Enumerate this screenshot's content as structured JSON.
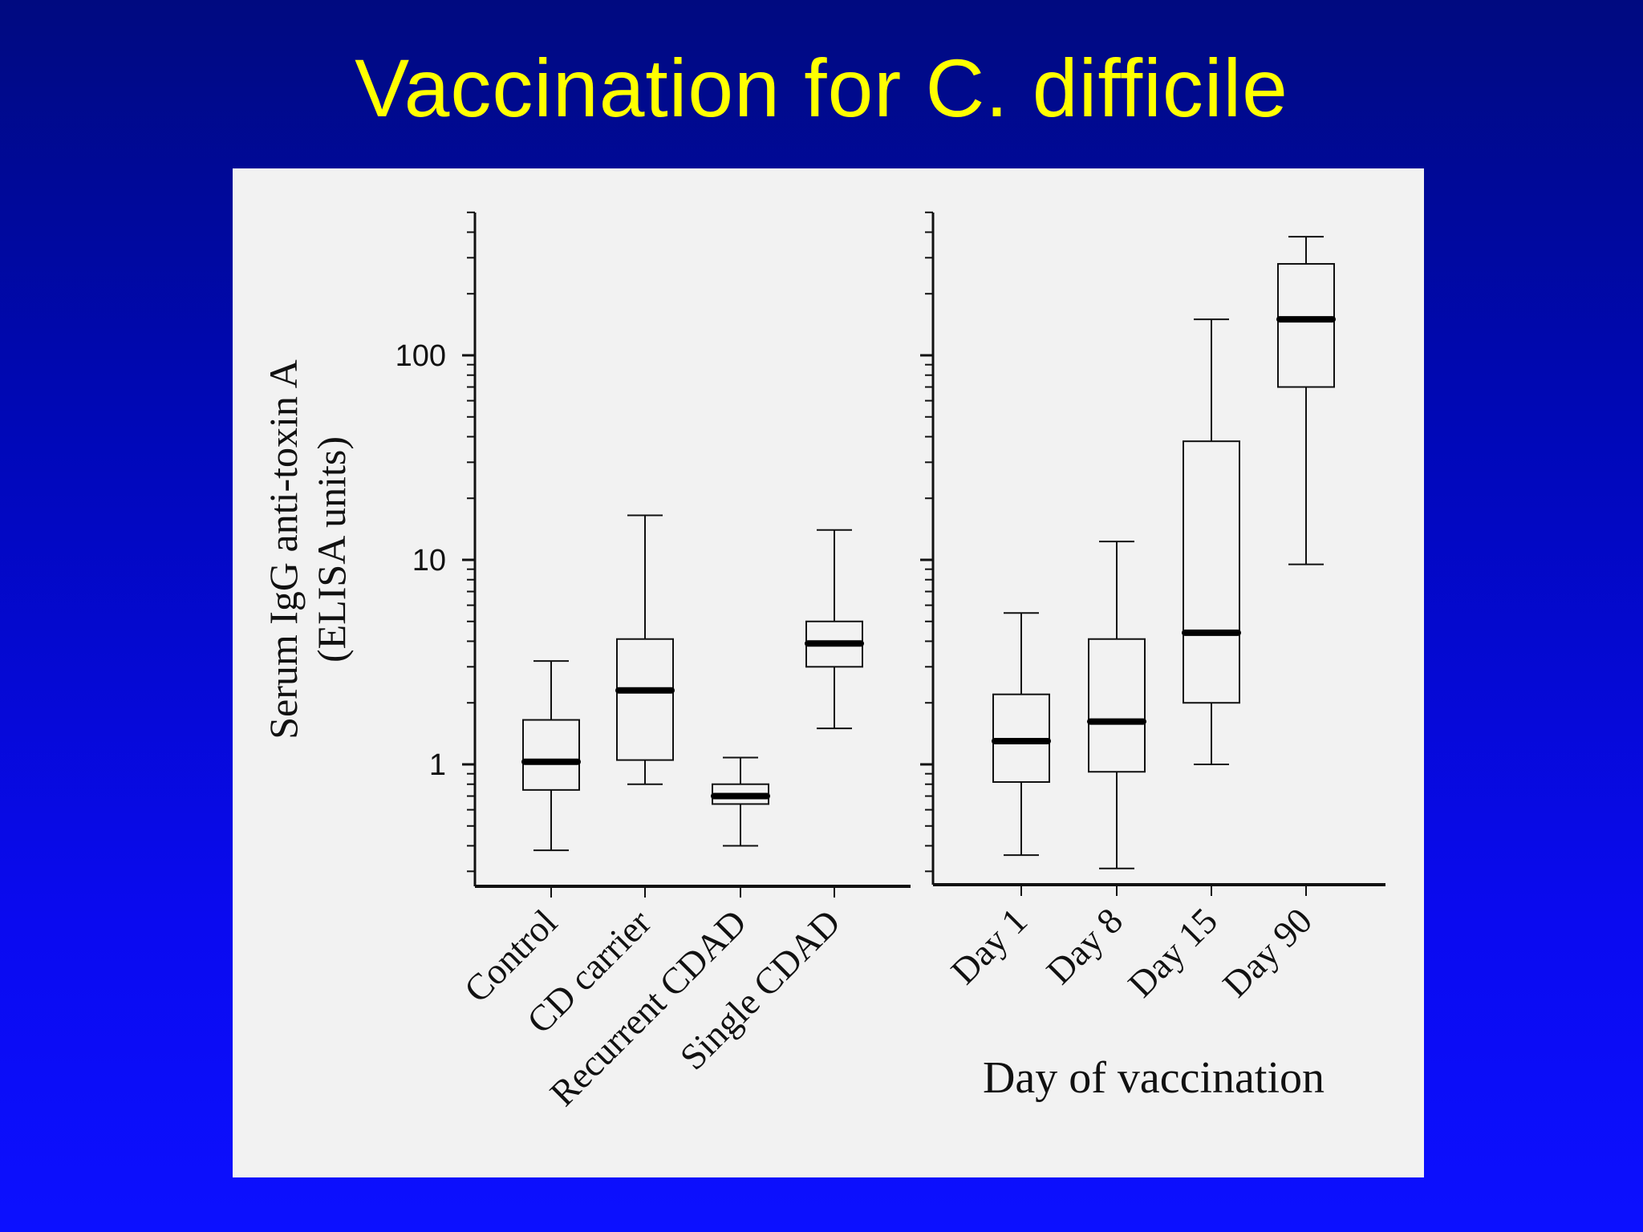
{
  "slide": {
    "title": "Vaccination for C. difficile",
    "background_top": "#000a80",
    "background_bottom": "#0c10ff",
    "title_color": "#ffff00"
  },
  "chart_data": [
    {
      "type": "boxplot",
      "ylabel_line1": "Serum IgG anti-toxin A",
      "ylabel_line2": "(ELISA units)",
      "y_scale": "log",
      "ylim": [
        0.3,
        500
      ],
      "y_tick_labels": [
        {
          "value": 1,
          "label": "1"
        },
        {
          "value": 10,
          "label": "10"
        },
        {
          "value": 100,
          "label": "100"
        }
      ],
      "categories": [
        "Control",
        "CD carrier",
        "Recurrent CDAD",
        "Single CDAD"
      ],
      "boxes": [
        {
          "min": 0.38,
          "q1": 0.75,
          "median": 1.03,
          "q3": 1.65,
          "max": 3.2
        },
        {
          "min": 0.8,
          "q1": 1.05,
          "median": 2.3,
          "q3": 4.1,
          "max": 16.5
        },
        {
          "min": 0.4,
          "q1": 0.64,
          "median": 0.7,
          "q3": 0.8,
          "max": 1.08
        },
        {
          "min": 1.5,
          "q1": 3.0,
          "median": 3.9,
          "q3": 5.0,
          "max": 14.0
        }
      ]
    },
    {
      "type": "boxplot",
      "xlabel": "Day of vaccination",
      "y_scale": "log",
      "ylim": [
        0.3,
        500
      ],
      "categories": [
        "Day 1",
        "Day 8",
        "Day 15",
        "Day 90"
      ],
      "boxes": [
        {
          "min": 0.36,
          "q1": 0.82,
          "median": 1.3,
          "q3": 2.2,
          "max": 5.5
        },
        {
          "min": 0.31,
          "q1": 0.92,
          "median": 1.62,
          "q3": 4.1,
          "max": 12.3
        },
        {
          "min": 1.0,
          "q1": 2.0,
          "median": 4.4,
          "q3": 38.0,
          "max": 150.0
        },
        {
          "min": 9.5,
          "q1": 70.0,
          "median": 150.0,
          "q3": 280.0,
          "max": 380.0
        }
      ]
    }
  ]
}
